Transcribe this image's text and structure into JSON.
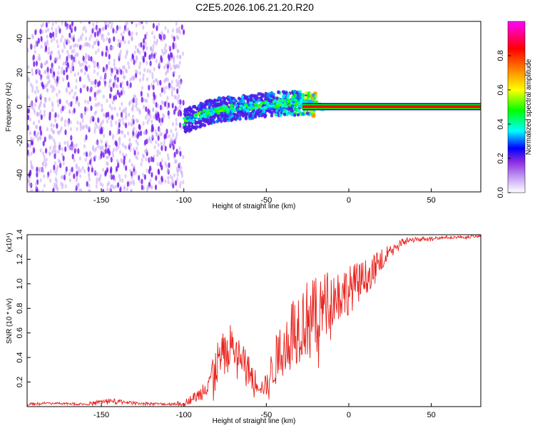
{
  "figure_title": "C2E5.2026.106.21.20.R20",
  "chart_data": [
    {
      "type": "heatmap",
      "name": "spectrogram",
      "title": "C2E5.2026.106.21.20.R20",
      "xlabel": "Height of straight line (km)",
      "ylabel": "Frequency (Hz)",
      "xlim": [
        -195,
        80
      ],
      "ylim": [
        -50,
        50
      ],
      "x_ticks": [
        -150,
        -100,
        -50,
        0,
        50
      ],
      "x_tick_labels": [
        "-150",
        "-100",
        "-50",
        "0",
        "50"
      ],
      "y_ticks": [
        -40,
        -20,
        0,
        20,
        40
      ],
      "y_tick_labels": [
        "-40",
        "-20",
        "0",
        "20",
        "40"
      ],
      "colorbar": {
        "label": "Normalized spectral amplitude",
        "range": [
          0,
          1
        ],
        "ticks": [
          0.0,
          0.2,
          0.4,
          0.6,
          0.8
        ],
        "tick_labels": [
          "0.0",
          "0.2",
          "0.4",
          "0.6",
          "0.8"
        ],
        "colormap": [
          "#ffffff",
          "#8a2be2",
          "#0000ff",
          "#00ffff",
          "#00ff00",
          "#ffff00",
          "#ff8000",
          "#ff0000",
          "#ff00ff"
        ]
      },
      "noise_region": {
        "x_range": [
          -195,
          -100
        ],
        "y_range": [
          -50,
          50
        ],
        "amplitude": 0.12
      },
      "ridge": [
        {
          "x": -195,
          "f": -5,
          "amp": 0.15
        },
        {
          "x": -170,
          "f": -4,
          "amp": 0.18
        },
        {
          "x": -150,
          "f": -6,
          "amp": 0.17
        },
        {
          "x": -140,
          "f": -11,
          "amp": 0.3
        },
        {
          "x": -100,
          "f": -9,
          "amp": 0.25
        },
        {
          "x": -90,
          "f": -5,
          "amp": 0.3
        },
        {
          "x": -80,
          "f": -2,
          "amp": 0.32
        },
        {
          "x": -60,
          "f": 0,
          "amp": 0.33
        },
        {
          "x": -50,
          "f": 1,
          "amp": 0.35
        },
        {
          "x": -40,
          "f": 2,
          "amp": 0.4
        },
        {
          "x": -30,
          "f": 2,
          "amp": 0.5
        },
        {
          "x": -20,
          "f": 1,
          "amp": 0.7
        },
        {
          "x": -15,
          "f": 0,
          "amp": 0.95
        },
        {
          "x": 80,
          "f": 0,
          "amp": 1.0
        }
      ],
      "carrier": {
        "frequency": 0,
        "x_from": -28,
        "x_to": 80
      }
    },
    {
      "type": "line",
      "name": "snr",
      "xlabel": "Height of straight line (km)",
      "ylabel": "SNR (10 * v/v)",
      "y_multiplier": "(x10⁴)",
      "xlim": [
        -195,
        80
      ],
      "ylim": [
        0,
        1.4
      ],
      "x_ticks": [
        -150,
        -100,
        -50,
        0,
        50
      ],
      "x_tick_labels": [
        "-150",
        "-100",
        "-50",
        "0",
        "50"
      ],
      "y_ticks": [
        0.2,
        0.4,
        0.6,
        0.8,
        1.0,
        1.2,
        1.4
      ],
      "y_tick_labels": [
        "0.2",
        "0.4",
        "0.6",
        "0.8",
        "1.0",
        "1.2",
        "1.4"
      ],
      "line_color": "#e8201a",
      "series": [
        {
          "name": "SNR",
          "x": [
            -195,
            -180,
            -160,
            -145,
            -130,
            -110,
            -100,
            -90,
            -85,
            -80,
            -75,
            -72,
            -70,
            -67,
            -63,
            -60,
            -57,
            -54,
            -52,
            -50,
            -48,
            -45,
            -40,
            -35,
            -30,
            -25,
            -20,
            -15,
            -10,
            -5,
            0,
            5,
            10,
            15,
            20,
            25,
            30,
            35,
            40,
            50,
            60,
            70,
            80
          ],
          "y": [
            0.02,
            0.03,
            0.02,
            0.05,
            0.03,
            0.02,
            0.03,
            0.1,
            0.22,
            0.35,
            0.42,
            0.5,
            0.48,
            0.42,
            0.35,
            0.28,
            0.22,
            0.18,
            0.15,
            0.18,
            0.25,
            0.35,
            0.5,
            0.6,
            0.68,
            0.72,
            0.75,
            0.82,
            0.88,
            0.92,
            0.95,
            1.0,
            1.05,
            1.12,
            1.2,
            1.28,
            1.32,
            1.35,
            1.36,
            1.37,
            1.38,
            1.38,
            1.39
          ],
          "spread": [
            0.01,
            0.01,
            0.01,
            0.02,
            0.01,
            0.01,
            0.02,
            0.06,
            0.12,
            0.18,
            0.2,
            0.18,
            0.16,
            0.15,
            0.14,
            0.12,
            0.1,
            0.08,
            0.06,
            0.1,
            0.14,
            0.2,
            0.25,
            0.3,
            0.32,
            0.32,
            0.3,
            0.28,
            0.25,
            0.22,
            0.2,
            0.18,
            0.15,
            0.12,
            0.08,
            0.05,
            0.04,
            0.03,
            0.02,
            0.015,
            0.012,
            0.01,
            0.01
          ]
        }
      ]
    }
  ]
}
